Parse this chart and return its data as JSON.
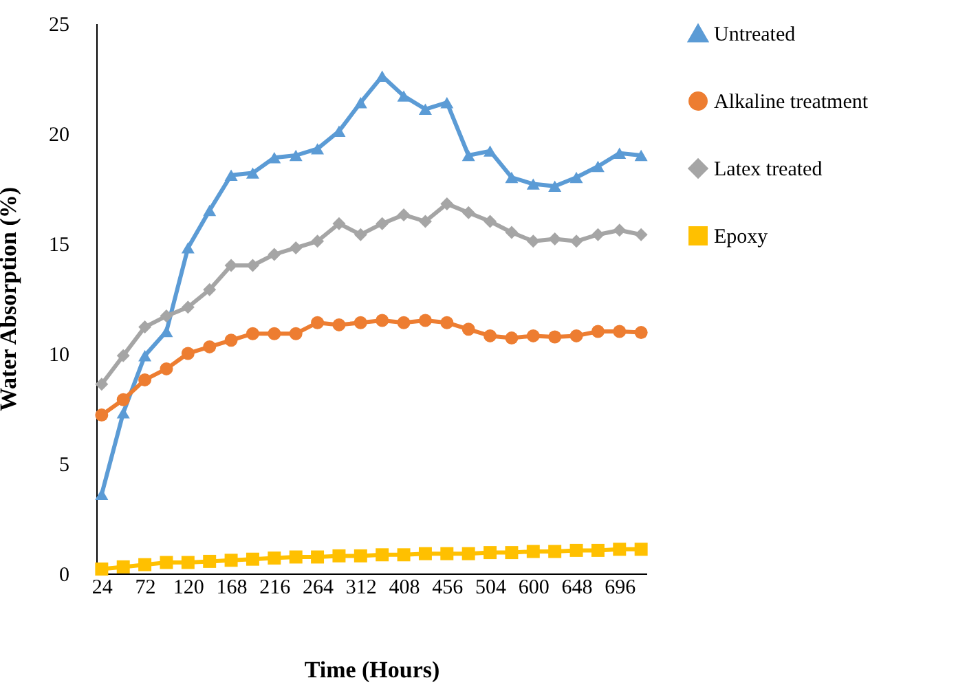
{
  "chart_data": {
    "type": "line",
    "xlabel": "Time (Hours)",
    "ylabel": "Water Absorption (%)",
    "categories": [
      "24",
      null,
      "72",
      null,
      "120",
      null,
      "168",
      null,
      "216",
      null,
      "264",
      null,
      "312",
      null,
      "408",
      null,
      "456",
      null,
      "504",
      null,
      "600",
      null,
      "648",
      null,
      "696",
      null
    ],
    "series": [
      {
        "name": "Untreated",
        "color": "#5b9bd5",
        "marker": "triangle",
        "values": [
          3.6,
          7.3,
          9.9,
          11.0,
          14.8,
          16.5,
          18.1,
          18.2,
          18.9,
          19.0,
          19.3,
          20.1,
          21.4,
          22.6,
          21.7,
          21.1,
          21.4,
          19.0,
          19.2,
          18.0,
          17.7,
          17.6,
          18.0,
          18.5,
          19.1,
          19.0
        ]
      },
      {
        "name": "Alkaline treatment",
        "color": "#ed7d31",
        "marker": "circle",
        "values": [
          7.2,
          7.9,
          8.8,
          9.3,
          10.0,
          10.3,
          10.6,
          10.9,
          10.9,
          10.9,
          11.4,
          11.3,
          11.4,
          11.5,
          11.4,
          11.5,
          11.4,
          11.1,
          10.8,
          10.7,
          10.8,
          10.75,
          10.8,
          11.0,
          11.0,
          10.95
        ]
      },
      {
        "name": "Latex treated",
        "color": "#a5a5a5",
        "marker": "diamond",
        "values": [
          8.6,
          9.9,
          11.2,
          11.7,
          12.1,
          12.9,
          14.0,
          14.0,
          14.5,
          14.8,
          15.1,
          15.9,
          15.4,
          15.9,
          16.3,
          16.0,
          16.8,
          16.4,
          16.0,
          15.5,
          15.1,
          15.2,
          15.1,
          15.4,
          15.6,
          15.4
        ]
      },
      {
        "name": "Epoxy",
        "color": "#ffc000",
        "marker": "square",
        "values": [
          0.2,
          0.3,
          0.4,
          0.5,
          0.5,
          0.55,
          0.6,
          0.65,
          0.7,
          0.75,
          0.75,
          0.8,
          0.8,
          0.85,
          0.85,
          0.9,
          0.9,
          0.9,
          0.95,
          0.95,
          1.0,
          1.0,
          1.05,
          1.05,
          1.1,
          1.1
        ]
      }
    ],
    "ylim": [
      0,
      25
    ],
    "yticks": [
      0,
      5,
      10,
      15,
      20,
      25
    ],
    "grid": false,
    "legend": "right"
  }
}
